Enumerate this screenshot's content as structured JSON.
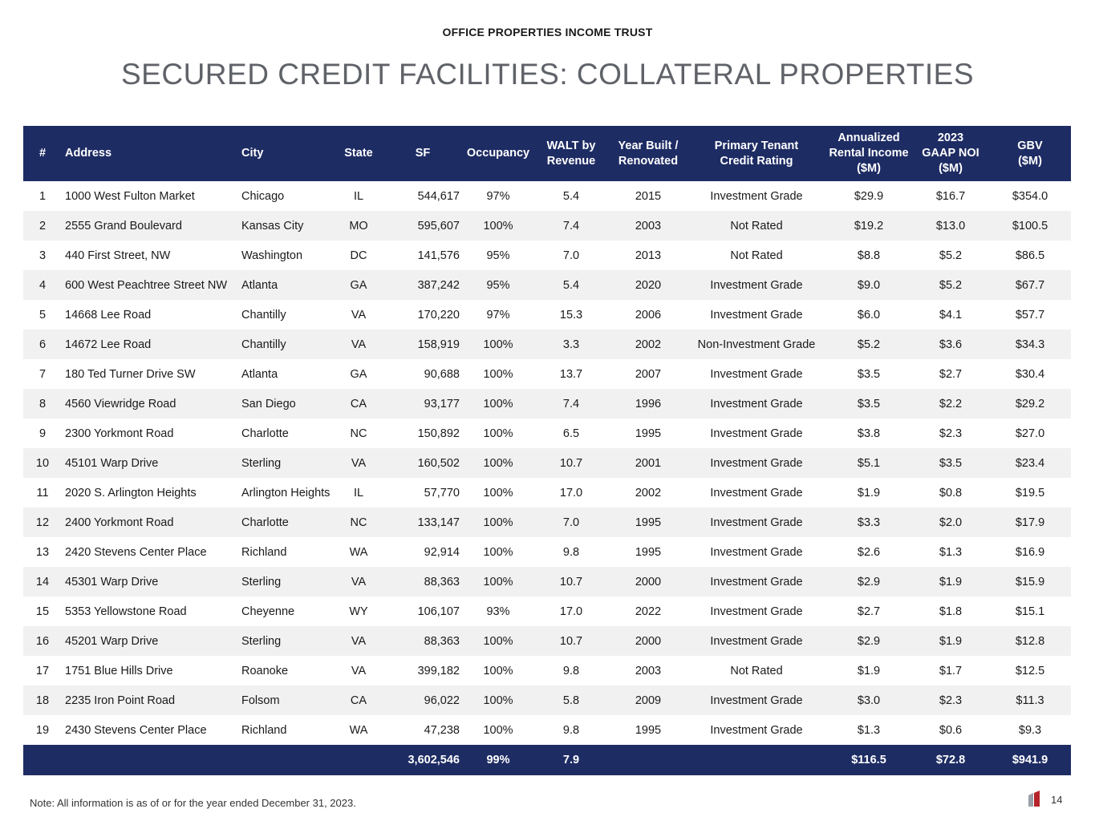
{
  "header": {
    "company": "OFFICE PROPERTIES INCOME TRUST",
    "title": "SECURED CREDIT FACILITIES:  COLLATERAL PROPERTIES"
  },
  "table": {
    "columns": [
      {
        "line1": "#",
        "line2": "",
        "line3": ""
      },
      {
        "line1": "Address",
        "line2": "",
        "line3": ""
      },
      {
        "line1": "City",
        "line2": "",
        "line3": ""
      },
      {
        "line1": "State",
        "line2": "",
        "line3": ""
      },
      {
        "line1": "SF",
        "line2": "",
        "line3": ""
      },
      {
        "line1": "Occupancy",
        "line2": "",
        "line3": ""
      },
      {
        "line1": "WALT by",
        "line2": "Revenue",
        "line3": ""
      },
      {
        "line1": "Year Built /",
        "line2": "Renovated",
        "line3": ""
      },
      {
        "line1": "Primary Tenant",
        "line2": "Credit Rating",
        "line3": ""
      },
      {
        "line1": "Annualized",
        "line2": "Rental Income",
        "line3": "($M)"
      },
      {
        "line1": "2023",
        "line2": "GAAP NOI",
        "line3": "($M)"
      },
      {
        "line1": "GBV",
        "line2": "($M)",
        "line3": ""
      }
    ],
    "rows": [
      [
        "1",
        "1000 West Fulton Market",
        "Chicago",
        "IL",
        "544,617",
        "97%",
        "5.4",
        "2015",
        "Investment Grade",
        "$29.9",
        "$16.7",
        "$354.0"
      ],
      [
        "2",
        "2555 Grand Boulevard",
        "Kansas City",
        "MO",
        "595,607",
        "100%",
        "7.4",
        "2003",
        "Not Rated",
        "$19.2",
        "$13.0",
        "$100.5"
      ],
      [
        "3",
        "440 First Street, NW",
        "Washington",
        "DC",
        "141,576",
        "95%",
        "7.0",
        "2013",
        "Not Rated",
        "$8.8",
        "$5.2",
        "$86.5"
      ],
      [
        "4",
        "600 West Peachtree Street NW",
        "Atlanta",
        "GA",
        "387,242",
        "95%",
        "5.4",
        "2020",
        "Investment Grade",
        "$9.0",
        "$5.2",
        "$67.7"
      ],
      [
        "5",
        "14668 Lee Road",
        "Chantilly",
        "VA",
        "170,220",
        "97%",
        "15.3",
        "2006",
        "Investment Grade",
        "$6.0",
        "$4.1",
        "$57.7"
      ],
      [
        "6",
        "14672 Lee Road",
        "Chantilly",
        "VA",
        "158,919",
        "100%",
        "3.3",
        "2002",
        "Non-Investment Grade",
        "$5.2",
        "$3.6",
        "$34.3"
      ],
      [
        "7",
        "180 Ted Turner Drive SW",
        "Atlanta",
        "GA",
        "90,688",
        "100%",
        "13.7",
        "2007",
        "Investment Grade",
        "$3.5",
        "$2.7",
        "$30.4"
      ],
      [
        "8",
        "4560 Viewridge Road",
        "San Diego",
        "CA",
        "93,177",
        "100%",
        "7.4",
        "1996",
        "Investment Grade",
        "$3.5",
        "$2.2",
        "$29.2"
      ],
      [
        "9",
        "2300 Yorkmont Road",
        "Charlotte",
        "NC",
        "150,892",
        "100%",
        "6.5",
        "1995",
        "Investment Grade",
        "$3.8",
        "$2.3",
        "$27.0"
      ],
      [
        "10",
        "45101 Warp Drive",
        "Sterling",
        "VA",
        "160,502",
        "100%",
        "10.7",
        "2001",
        "Investment Grade",
        "$5.1",
        "$3.5",
        "$23.4"
      ],
      [
        "11",
        "2020 S. Arlington Heights",
        "Arlington Heights",
        "IL",
        "57,770",
        "100%",
        "17.0",
        "2002",
        "Investment Grade",
        "$1.9",
        "$0.8",
        "$19.5"
      ],
      [
        "12",
        "2400 Yorkmont Road",
        "Charlotte",
        "NC",
        "133,147",
        "100%",
        "7.0",
        "1995",
        "Investment Grade",
        "$3.3",
        "$2.0",
        "$17.9"
      ],
      [
        "13",
        "2420 Stevens Center Place",
        "Richland",
        "WA",
        "92,914",
        "100%",
        "9.8",
        "1995",
        "Investment Grade",
        "$2.6",
        "$1.3",
        "$16.9"
      ],
      [
        "14",
        "45301 Warp Drive",
        "Sterling",
        "VA",
        "88,363",
        "100%",
        "10.7",
        "2000",
        "Investment Grade",
        "$2.9",
        "$1.9",
        "$15.9"
      ],
      [
        "15",
        "5353 Yellowstone Road",
        "Cheyenne",
        "WY",
        "106,107",
        "93%",
        "17.0",
        "2022",
        "Investment Grade",
        "$2.7",
        "$1.8",
        "$15.1"
      ],
      [
        "16",
        "45201 Warp Drive",
        "Sterling",
        "VA",
        "88,363",
        "100%",
        "10.7",
        "2000",
        "Investment Grade",
        "$2.9",
        "$1.9",
        "$12.8"
      ],
      [
        "17",
        "1751 Blue Hills Drive",
        "Roanoke",
        "VA",
        "399,182",
        "100%",
        "9.8",
        "2003",
        "Not Rated",
        "$1.9",
        "$1.7",
        "$12.5"
      ],
      [
        "18",
        "2235 Iron Point Road",
        "Folsom",
        "CA",
        "96,022",
        "100%",
        "5.8",
        "2009",
        "Investment Grade",
        "$3.0",
        "$2.3",
        "$11.3"
      ],
      [
        "19",
        "2430 Stevens Center Place",
        "Richland",
        "WA",
        "47,238",
        "100%",
        "9.8",
        "1995",
        "Investment Grade",
        "$1.3",
        "$0.6",
        "$9.3"
      ]
    ],
    "totals": {
      "sf": "3,602,546",
      "occupancy": "99%",
      "walt": "7.9",
      "rental_income": "$116.5",
      "noi": "$72.8",
      "gbv": "$941.9"
    }
  },
  "footer": {
    "note": "Note:  All information is as of or for the year ended December 31, 2023.",
    "page_number": "14"
  },
  "colors": {
    "header_bg": "#1e2c64",
    "stripe": "#f1f1f1",
    "title": "#5f6268",
    "logo_red": "#b5242a"
  }
}
